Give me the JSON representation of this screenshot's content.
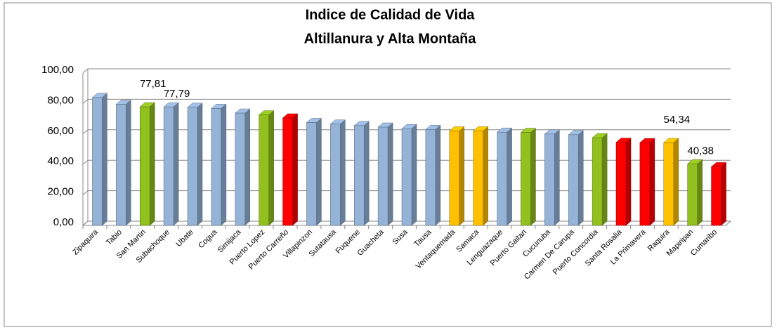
{
  "chart_data": {
    "type": "bar3d",
    "title": "Indice de Calidad de Vida",
    "subtitle": "Altillanura y Alta Montaña",
    "categories": [
      "Zipaquira",
      "Tabio",
      "San Martin",
      "Subachoque",
      "Ubate",
      "Cogua",
      "Simijaca",
      "Puerto Lopez",
      "Puerto Carreño",
      "Villapinzon",
      "Sutatausa",
      "Fuquene",
      "Guacheta",
      "Susa",
      "Tausa",
      "Ventaquemada",
      "Samaca",
      "Lenguazaque",
      "Puerto Gaitan",
      "Cucunuba",
      "Carmen De Carupa",
      "Puerto Concordia",
      "Santa Rosalia",
      "La Primavera",
      "Raquira",
      "Mapiripan",
      "Cumaribo"
    ],
    "values": [
      84,
      79.5,
      77.81,
      77.79,
      77.5,
      76.8,
      73.7,
      72.5,
      70.5,
      67.5,
      66.5,
      65.5,
      64.5,
      63.5,
      63,
      62,
      62,
      61.2,
      61,
      60,
      59.5,
      57.5,
      54.5,
      54.3,
      54.34,
      40.38,
      38.5
    ],
    "value_labels": [
      null,
      null,
      "77,81",
      "77,79",
      null,
      null,
      null,
      null,
      null,
      null,
      null,
      null,
      null,
      null,
      null,
      null,
      null,
      null,
      null,
      null,
      null,
      null,
      null,
      null,
      "54,34",
      "40,38",
      null
    ],
    "colors": [
      "#95b3d7",
      "#95b3d7",
      "#92c01f",
      "#95b3d7",
      "#95b3d7",
      "#95b3d7",
      "#95b3d7",
      "#92c01f",
      "#ff0000",
      "#95b3d7",
      "#95b3d7",
      "#95b3d7",
      "#95b3d7",
      "#95b3d7",
      "#95b3d7",
      "#ffc000",
      "#ffc000",
      "#95b3d7",
      "#92c01f",
      "#95b3d7",
      "#95b3d7",
      "#92c01f",
      "#ff0000",
      "#ff0000",
      "#ffc000",
      "#92c01f",
      "#ff0000"
    ],
    "ylim": [
      0,
      100
    ],
    "yticks": [
      {
        "value": 0,
        "label": "0,00"
      },
      {
        "value": 20,
        "label": "20,00"
      },
      {
        "value": 40,
        "label": "40,00"
      },
      {
        "value": 60,
        "label": "60,00"
      },
      {
        "value": 80,
        "label": "80,00"
      },
      {
        "value": 100,
        "label": "100,00"
      }
    ],
    "grid": true
  }
}
